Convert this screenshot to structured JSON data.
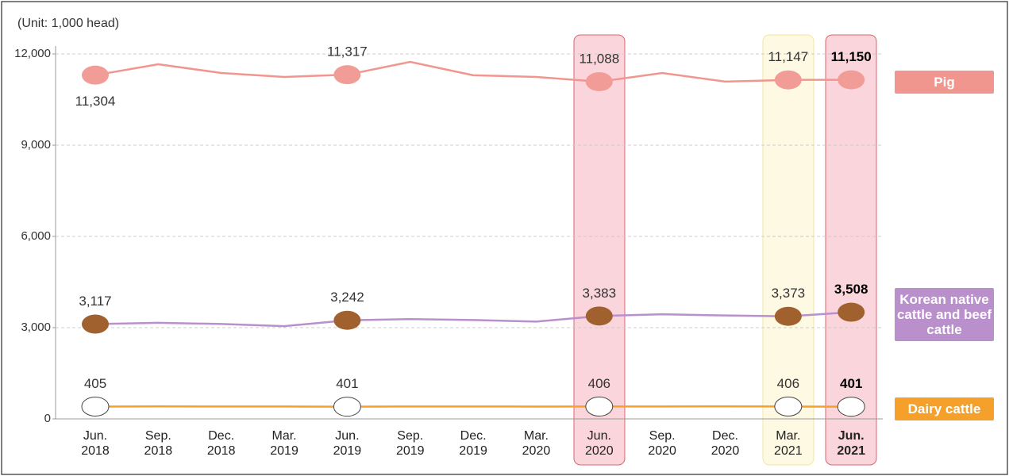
{
  "chart_data": {
    "type": "line",
    "unit_label": "(Unit: 1,000 head)",
    "categories": [
      "Jun. 2018",
      "Sep. 2018",
      "Dec. 2018",
      "Mar. 2019",
      "Jun. 2019",
      "Sep. 2019",
      "Dec. 2019",
      "Mar. 2020",
      "Jun. 2020",
      "Sep. 2020",
      "Dec. 2020",
      "Mar. 2021",
      "Jun. 2021"
    ],
    "series": [
      {
        "name": "Pig",
        "color": "#f0968f",
        "values": [
          11304,
          11660,
          11375,
          11245,
          11317,
          11740,
          11300,
          11245,
          11088,
          11375,
          11090,
          11147,
          11150
        ],
        "value_labels": [
          "11,304",
          null,
          null,
          null,
          "11,317",
          null,
          null,
          null,
          "11,088",
          null,
          null,
          "11,147",
          "11,150"
        ]
      },
      {
        "name": "Korean native cattle and beef cattle",
        "color": "#b98fcc",
        "values": [
          3117,
          3160,
          3120,
          3050,
          3242,
          3280,
          3250,
          3200,
          3383,
          3440,
          3400,
          3373,
          3508
        ],
        "value_labels": [
          "3,117",
          null,
          null,
          null,
          "3,242",
          null,
          null,
          null,
          "3,383",
          null,
          null,
          "3,373",
          "3,508"
        ]
      },
      {
        "name": "Dairy cattle",
        "color": "#f5a02a",
        "values": [
          405,
          410,
          408,
          407,
          401,
          408,
          407,
          405,
          406,
          409,
          410,
          406,
          401
        ],
        "value_labels": [
          "405",
          null,
          null,
          null,
          "401",
          null,
          null,
          null,
          "406",
          null,
          null,
          "406",
          "401"
        ]
      }
    ],
    "ylim": [
      0,
      12000
    ],
    "yticks": [
      0,
      {
        "value": 3000,
        "label": "3,000"
      },
      {
        "value": 6000,
        "label": "6,000"
      },
      {
        "value": 9000,
        "label": "9,000"
      },
      {
        "value": 12000,
        "label": "12,000"
      }
    ],
    "grid": true
  }
}
